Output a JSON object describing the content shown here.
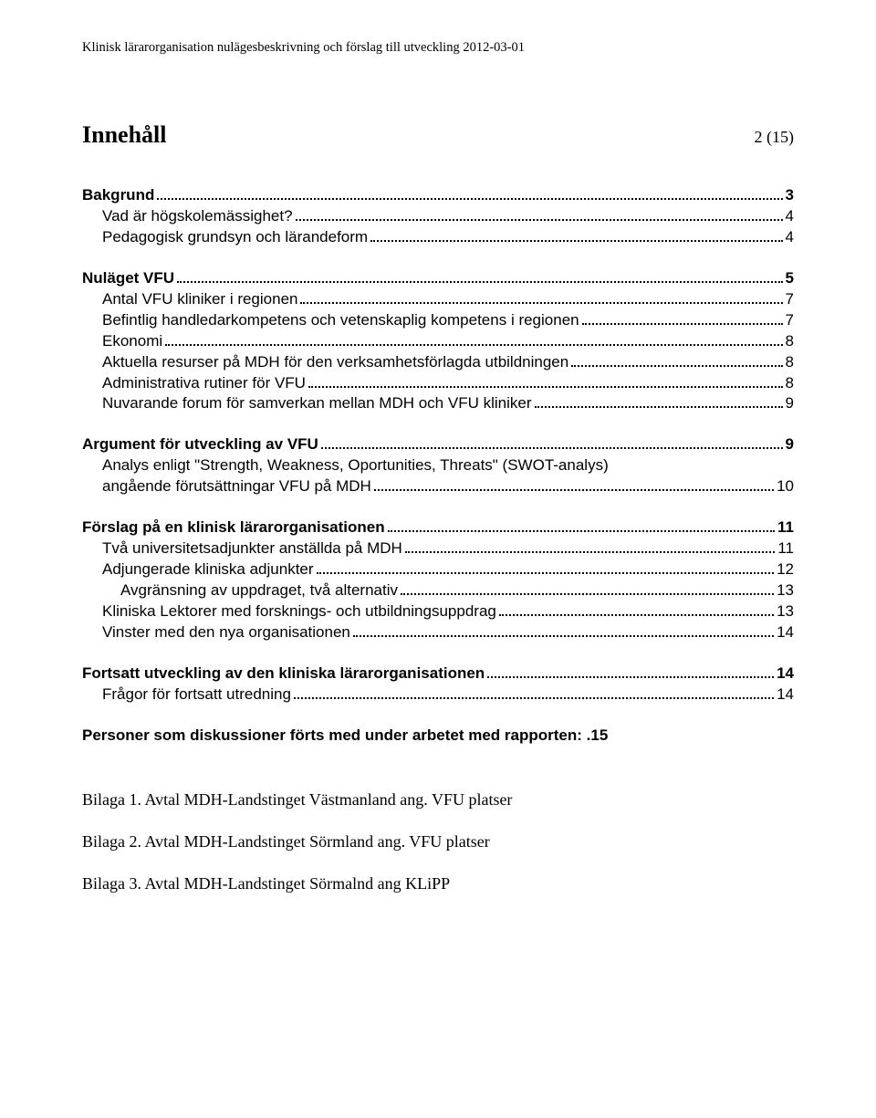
{
  "header": "Klinisk lärarorganisation nulägesbeskrivning och förslag till utveckling 2012-03-01",
  "title": "Innehåll",
  "pagecount": "2 (15)",
  "toc": [
    {
      "label": "Bakgrund",
      "page": "3",
      "bold": true,
      "indent": 0
    },
    {
      "label": "Vad är högskolemässighet?",
      "page": "4",
      "bold": false,
      "indent": 1
    },
    {
      "label": "Pedagogisk grundsyn och lärandeform",
      "page": "4",
      "bold": false,
      "indent": 1
    },
    {
      "spacer": true
    },
    {
      "label": "Nuläget VFU",
      "page": "5",
      "bold": true,
      "indent": 0
    },
    {
      "label": "Antal VFU kliniker i regionen",
      "page": "7",
      "bold": false,
      "indent": 1
    },
    {
      "label": "Befintlig handledarkompetens och vetenskaplig kompetens i regionen",
      "page": "7",
      "bold": false,
      "indent": 1
    },
    {
      "label": "Ekonomi",
      "page": "8",
      "bold": false,
      "indent": 1
    },
    {
      "label": "Aktuella resurser på MDH för den verksamhetsförlagda utbildningen",
      "page": "8",
      "bold": false,
      "indent": 1
    },
    {
      "label": "Administrativa rutiner för VFU",
      "page": "8",
      "bold": false,
      "indent": 1
    },
    {
      "label": "Nuvarande forum för samverkan mellan MDH och VFU kliniker",
      "page": "9",
      "bold": false,
      "indent": 1
    },
    {
      "spacer": true
    },
    {
      "label": "Argument för utveckling av VFU",
      "page": "9",
      "bold": true,
      "indent": 0
    },
    {
      "label": "Analys enligt \"Strength, Weakness, Oportunities, Threats\" (SWOT-analys) angående förutsättningar VFU på MDH",
      "page": "10",
      "bold": false,
      "indent": 1,
      "wrap": true
    },
    {
      "spacer": true
    },
    {
      "label": "Förslag på en klinisk lärarorganisationen",
      "page": "11",
      "bold": true,
      "indent": 0
    },
    {
      "label": "Två universitetsadjunkter anställda på MDH",
      "page": "11",
      "bold": false,
      "indent": 1
    },
    {
      "label": "Adjungerade kliniska adjunkter",
      "page": "12",
      "bold": false,
      "indent": 1
    },
    {
      "label": "Avgränsning av uppdraget, två alternativ",
      "page": "13",
      "bold": false,
      "indent": 2
    },
    {
      "label": "Kliniska Lektorer med forsknings- och utbildningsuppdrag",
      "page": "13",
      "bold": false,
      "indent": 1
    },
    {
      "label": "Vinster med den nya organisationen",
      "page": "14",
      "bold": false,
      "indent": 1
    },
    {
      "spacer": true
    },
    {
      "label": "Fortsatt utveckling av den kliniska lärarorganisationen",
      "page": "14",
      "bold": true,
      "indent": 0
    },
    {
      "label": "Frågor för fortsatt utredning",
      "page": "14",
      "bold": false,
      "indent": 1
    },
    {
      "spacer": true
    },
    {
      "label": "Personer som diskussioner förts med under arbetet med rapporten: .",
      "page": "15",
      "bold": true,
      "indent": 0,
      "nodots": true
    }
  ],
  "attachments": [
    "Bilaga 1. Avtal MDH-Landstinget Västmanland ang. VFU platser",
    "Bilaga 2. Avtal MDH-Landstinget Sörmland ang. VFU platser",
    "Bilaga 3. Avtal MDH-Landstinget Sörmalnd ang KLiPP"
  ]
}
